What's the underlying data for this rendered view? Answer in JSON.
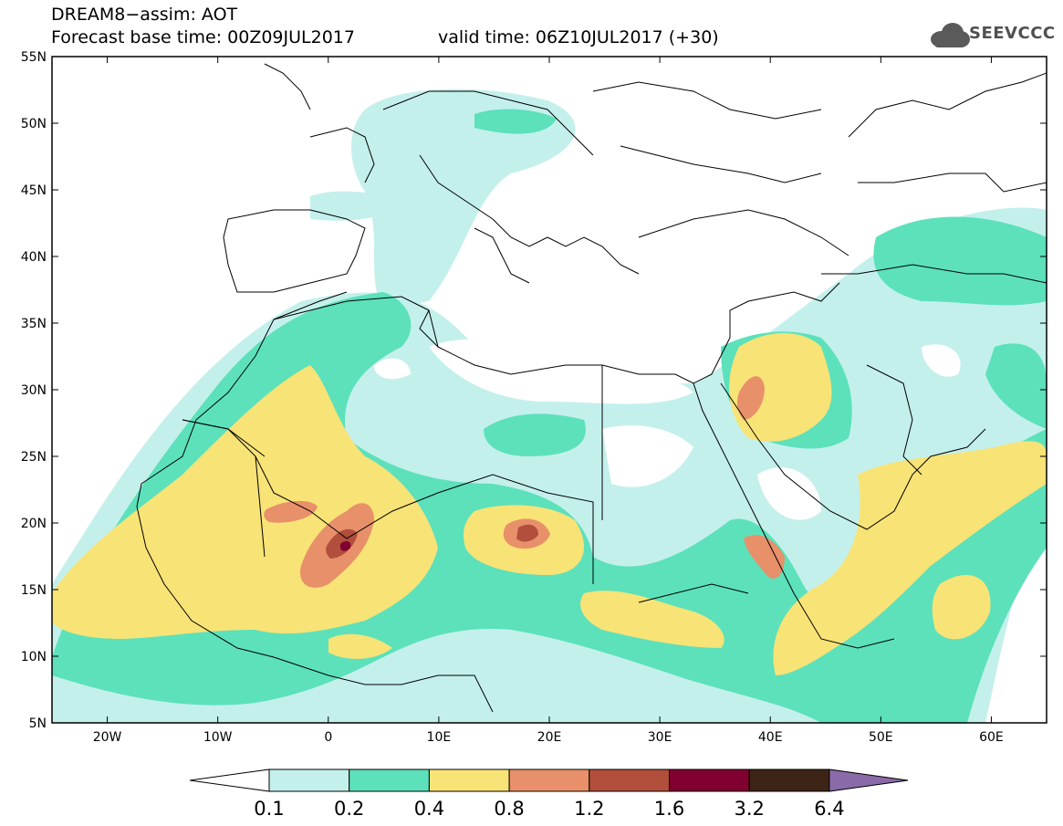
{
  "header": {
    "title": "DREAM8−assim: AOT",
    "base_time": "Forecast base time: 00Z09JUL2017",
    "valid_time": "valid time: 06Z10JUL2017 (+30)"
  },
  "logo": {
    "text": "SEEVCCC",
    "icon": "cloud-icon"
  },
  "map": {
    "lon_range": [
      -25,
      65
    ],
    "lat_range": [
      5,
      55
    ],
    "lat_labels": [
      "55N",
      "50N",
      "45N",
      "40N",
      "35N",
      "30N",
      "25N",
      "20N",
      "15N",
      "10N",
      "5N"
    ],
    "lon_labels": [
      "20W",
      "10W",
      "0",
      "10E",
      "20E",
      "30E",
      "40E",
      "50E",
      "60E"
    ]
  },
  "colorbar": {
    "labels": [
      "0.1",
      "0.2",
      "0.4",
      "0.8",
      "1.2",
      "1.6",
      "3.2",
      "6.4"
    ],
    "colors": [
      "#ffffff",
      "#c4f0ec",
      "#5ce1bb",
      "#f8e377",
      "#e8906a",
      "#b14e3c",
      "#800030",
      "#3d2416",
      "#8a6aa8"
    ]
  }
}
